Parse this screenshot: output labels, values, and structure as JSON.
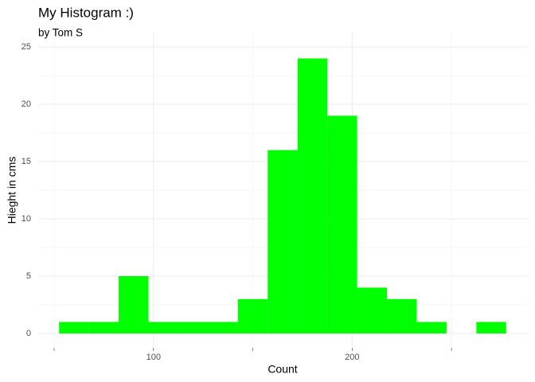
{
  "chart_data": {
    "type": "histogram",
    "title": "My Histogram :)",
    "subtitle": "by Tom S",
    "x_label": "Count",
    "y_label": "Hieght in cms",
    "bins": [
      52.5,
      67.5,
      82.5,
      97.5,
      112.5,
      127.5,
      142.5,
      157.5,
      172.5,
      187.5,
      202.5,
      217.5,
      232.5,
      247.5,
      262.5,
      277.5
    ],
    "values": [
      1,
      1,
      5,
      1,
      1,
      1,
      3,
      16,
      24,
      19,
      4,
      3,
      1,
      0,
      1
    ],
    "color": "#00ff00",
    "xlim": [
      42,
      288
    ],
    "xticks": [
      100,
      200
    ],
    "ylim": [
      -1.25,
      26.25
    ],
    "yticks": [
      0,
      5,
      10,
      15,
      20,
      25
    ],
    "grid": true,
    "minor_grid": true
  }
}
